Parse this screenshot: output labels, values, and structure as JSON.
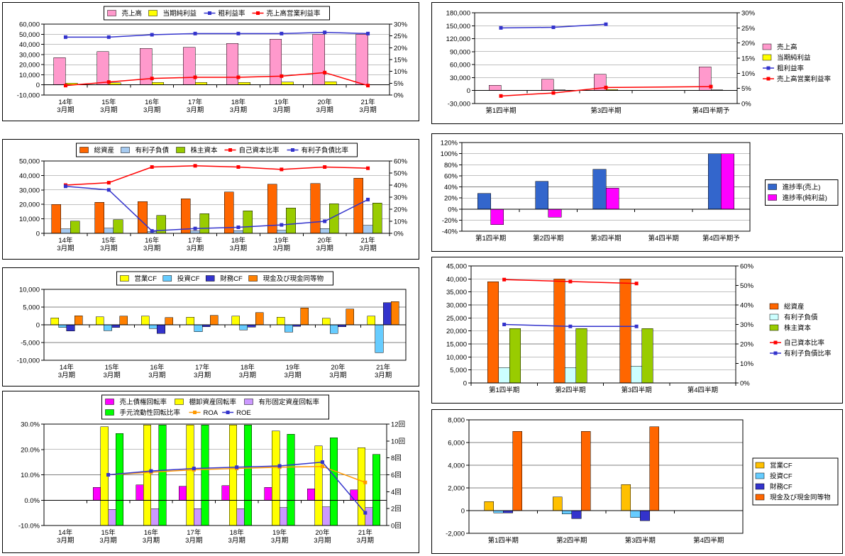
{
  "page": {
    "background": "#FFFFFF"
  },
  "chart_data": [
    {
      "id": "annual-pl",
      "type": "bar-line-combo",
      "x_labels": [
        "14年|3月期",
        "15年|3月期",
        "16年|3月期",
        "17年|3月期",
        "18年|3月期",
        "19年|3月期",
        "20年|3月期",
        "21年|3月期"
      ],
      "bars": [
        {
          "name": "売上高",
          "color": "#FF99CC",
          "axis": "left",
          "values": [
            27000,
            33000,
            36000,
            37000,
            41000,
            45000,
            50000,
            50000
          ]
        },
        {
          "name": "当期純利益",
          "color": "#FFFF00",
          "axis": "left",
          "values": [
            1800,
            2000,
            2300,
            2500,
            2600,
            2800,
            3000,
            400
          ]
        }
      ],
      "lines": [
        {
          "name": "粗利益率",
          "color": "#3333CC",
          "axis": "right",
          "values": [
            0.245,
            0.245,
            0.255,
            0.26,
            0.26,
            0.26,
            0.265,
            0.26
          ]
        },
        {
          "name": "売上高営業利益率",
          "color": "#FF0000",
          "axis": "right",
          "values": [
            0.04,
            0.055,
            0.07,
            0.075,
            0.075,
            0.08,
            0.095,
            0.04
          ]
        }
      ],
      "axes": {
        "left": {
          "min": -10000,
          "max": 60000,
          "step": 10000,
          "format": "number"
        },
        "right": {
          "min": 0,
          "max": 0.3,
          "step": 0.05,
          "format": "percent"
        }
      },
      "legend": {
        "position": "top",
        "rows": 1,
        "border": true
      }
    },
    {
      "id": "annual-bs",
      "type": "bar-line-combo",
      "x_labels": [
        "14年|3月期",
        "15年|3月期",
        "16年|3月期",
        "17年|3月期",
        "18年|3月期",
        "19年|3月期",
        "20年|3月期",
        "21年|3月期"
      ],
      "bars": [
        {
          "name": "総資産",
          "color": "#FF6600",
          "axis": "left",
          "values": [
            20000,
            21500,
            22000,
            24000,
            28500,
            34000,
            34500,
            38000
          ]
        },
        {
          "name": "有利子負債",
          "color": "#A6CAF0",
          "axis": "left",
          "values": [
            3000,
            3500,
            1200,
            1500,
            1800,
            2200,
            3200,
            5500
          ]
        },
        {
          "name": "株主資本",
          "color": "#99CC00",
          "axis": "left",
          "values": [
            8500,
            9500,
            12500,
            13500,
            15500,
            17500,
            20500,
            21000
          ]
        }
      ],
      "lines": [
        {
          "name": "自己資本比率",
          "color": "#FF0000",
          "axis": "right",
          "values": [
            0.4,
            0.42,
            0.55,
            0.56,
            0.55,
            0.53,
            0.55,
            0.54
          ]
        },
        {
          "name": "有利子負債比率",
          "color": "#3333CC",
          "axis": "right",
          "values": [
            0.39,
            0.36,
            0.02,
            0.04,
            0.05,
            0.07,
            0.1,
            0.28
          ]
        }
      ],
      "axes": {
        "left": {
          "min": 0,
          "max": 50000,
          "step": 10000,
          "format": "number"
        },
        "right": {
          "min": 0,
          "max": 0.6,
          "step": 0.1,
          "format": "percent"
        }
      },
      "legend": {
        "position": "top",
        "rows": 1,
        "border": true
      }
    },
    {
      "id": "annual-cf",
      "type": "bar",
      "x_labels": [
        "14年|3月期",
        "15年|3月期",
        "16年|3月期",
        "17年|3月期",
        "18年|3月期",
        "19年|3月期",
        "20年|3月期",
        "21年|3月期"
      ],
      "bars": [
        {
          "name": "営業CF",
          "color": "#FFFF00",
          "axis": "left",
          "values": [
            2000,
            2300,
            2500,
            2200,
            2500,
            2200,
            1900,
            2500
          ]
        },
        {
          "name": "投資CF",
          "color": "#66CCFF",
          "axis": "left",
          "values": [
            -700,
            -1600,
            -1000,
            -1900,
            -1400,
            -2000,
            -2400,
            -7800
          ]
        },
        {
          "name": "財務CF",
          "color": "#3333CC",
          "axis": "left",
          "values": [
            -1700,
            -700,
            -2400,
            -500,
            -600,
            -400,
            -500,
            6300
          ]
        },
        {
          "name": "現金及び現金同等物",
          "color": "#FF8000",
          "axis": "left",
          "values": [
            2600,
            2500,
            2100,
            2700,
            3500,
            4800,
            4500,
            6600
          ]
        }
      ],
      "lines": [],
      "axes": {
        "left": {
          "min": -10000,
          "max": 10000,
          "step": 5000,
          "format": "number"
        }
      },
      "legend": {
        "position": "top",
        "rows": 1,
        "border": true
      }
    },
    {
      "id": "annual-ratio",
      "type": "bar-line-combo",
      "x_labels": [
        "14年|3月期",
        "15年|3月期",
        "16年|3月期",
        "17年|3月期",
        "18年|3月期",
        "19年|3月期",
        "20年|3月期",
        "21年|3月期"
      ],
      "bars": [
        {
          "name": "売上債権回転率",
          "color": "#FF00FF",
          "axis": "left",
          "values": [
            null,
            0.05,
            0.06,
            0.055,
            0.058,
            0.05,
            0.045,
            0.04
          ]
        },
        {
          "name": "棚卸資産回転率",
          "color": "#FFFF00",
          "axis": "right",
          "values": [
            null,
            11.7,
            11.9,
            11.9,
            11.9,
            11.2,
            9.4,
            9.2
          ]
        },
        {
          "name": "有形固定資産回転率",
          "color": "#CC99FF",
          "axis": "right",
          "values": [
            null,
            1.9,
            2.0,
            2.0,
            2.0,
            2.1,
            2.2,
            2.1
          ]
        },
        {
          "name": "手元流動性回転比率",
          "color": "#00FF00",
          "axis": "right",
          "values": [
            null,
            10.9,
            11.9,
            11.9,
            11.9,
            10.8,
            10.4,
            8.4
          ]
        }
      ],
      "lines": [
        {
          "name": "ROA",
          "color": "#FF9900",
          "axis": "left",
          "values": [
            null,
            0.1,
            0.11,
            0.12,
            0.125,
            0.13,
            0.133,
            0.07
          ]
        },
        {
          "name": "ROE",
          "color": "#3333CC",
          "axis": "left",
          "values": [
            null,
            0.1,
            0.115,
            0.125,
            0.13,
            0.135,
            0.15,
            -0.05
          ]
        }
      ],
      "axes": {
        "left": {
          "min": -0.1,
          "max": 0.3,
          "step": 0.1,
          "format": "percent1"
        },
        "right": {
          "min": 0,
          "max": 12,
          "step": 2,
          "format": "kai"
        }
      },
      "legend": {
        "position": "top",
        "rows": 2,
        "border": true
      }
    },
    {
      "id": "q-pl",
      "type": "bar-line-combo",
      "x_labels": [
        "第1四半期",
        "",
        "第3四半期",
        "",
        "第4四半期予"
      ],
      "bars": [
        {
          "name": "売上高",
          "color": "#FF99CC",
          "axis": "left",
          "values": [
            12000,
            26000,
            38000,
            null,
            55000
          ]
        },
        {
          "name": "当期純利益",
          "color": "#FFFF00",
          "axis": "left",
          "values": [
            600,
            1200,
            2000,
            null,
            1500
          ]
        }
      ],
      "lines": [
        {
          "name": "粗利益率",
          "color": "#3333CC",
          "axis": "right",
          "values": [
            0.25,
            0.252,
            0.262,
            null,
            null
          ]
        },
        {
          "name": "売上高営業利益率",
          "color": "#FF0000",
          "axis": "right",
          "values": [
            0.025,
            0.035,
            0.053,
            null,
            0.056
          ]
        }
      ],
      "axes": {
        "left": {
          "min": -30000,
          "max": 180000,
          "step": 30000,
          "format": "number"
        },
        "right": {
          "min": 0,
          "max": 0.3,
          "step": 0.05,
          "format": "percent"
        }
      },
      "legend": {
        "position": "right",
        "border": false
      }
    },
    {
      "id": "q-progress",
      "type": "bar",
      "x_labels": [
        "第1四半期",
        "第2四半期",
        "第3四半期",
        "第4四半期",
        "第4四半期予"
      ],
      "bars": [
        {
          "name": "進捗率(売上)",
          "color": "#3366CC",
          "axis": "left",
          "values": [
            0.28,
            0.5,
            0.72,
            null,
            1.0
          ]
        },
        {
          "name": "進捗率(純利益)",
          "color": "#FF00FF",
          "axis": "left",
          "values": [
            -0.28,
            -0.15,
            0.38,
            null,
            1.0
          ]
        }
      ],
      "lines": [],
      "axes": {
        "left": {
          "min": -0.4,
          "max": 1.2,
          "step": 0.2,
          "format": "percent"
        }
      },
      "legend": {
        "position": "right",
        "border": true
      }
    },
    {
      "id": "q-bs",
      "type": "bar-line-combo",
      "x_labels": [
        "第1四半期",
        "第2四半期",
        "第3四半期",
        "第4四半期"
      ],
      "bars": [
        {
          "name": "総資産",
          "color": "#FF6600",
          "axis": "left",
          "values": [
            39000,
            40000,
            40000,
            null
          ]
        },
        {
          "name": "有利子負債",
          "color": "#CCFFFF",
          "axis": "left",
          "values": [
            6000,
            6000,
            6500,
            null
          ]
        },
        {
          "name": "株主資本",
          "color": "#99CC00",
          "axis": "left",
          "values": [
            21000,
            21000,
            21000,
            null
          ]
        }
      ],
      "lines": [
        {
          "name": "自己資本比率",
          "color": "#FF0000",
          "axis": "right",
          "values": [
            0.53,
            0.52,
            0.51,
            null
          ]
        },
        {
          "name": "有利子負債比率",
          "color": "#3333CC",
          "axis": "right",
          "values": [
            0.3,
            0.29,
            0.29,
            null
          ]
        }
      ],
      "axes": {
        "left": {
          "min": 0,
          "max": 45000,
          "step": 5000,
          "format": "number"
        },
        "right": {
          "min": 0,
          "max": 0.6,
          "step": 0.1,
          "format": "percent"
        }
      },
      "legend": {
        "position": "right",
        "border": false,
        "gap_after": 2
      }
    },
    {
      "id": "q-cf",
      "type": "bar",
      "x_labels": [
        "第1四半期",
        "第2四半期",
        "第3四半期",
        "第4四半期"
      ],
      "bars": [
        {
          "name": "営業CF",
          "color": "#FFC000",
          "axis": "left",
          "values": [
            800,
            1200,
            2300,
            null
          ]
        },
        {
          "name": "投資CF",
          "color": "#66CCFF",
          "axis": "left",
          "values": [
            -200,
            -300,
            -600,
            null
          ]
        },
        {
          "name": "財務CF",
          "color": "#3333CC",
          "axis": "left",
          "values": [
            -200,
            -700,
            -900,
            null
          ]
        },
        {
          "name": "現金及び現金同等物",
          "color": "#FF6600",
          "axis": "left",
          "values": [
            7000,
            7000,
            7400,
            null
          ]
        }
      ],
      "lines": [],
      "axes": {
        "left": {
          "min": -2000,
          "max": 8000,
          "step": 2000,
          "format": "number"
        }
      },
      "legend": {
        "position": "right",
        "border": true
      }
    }
  ]
}
